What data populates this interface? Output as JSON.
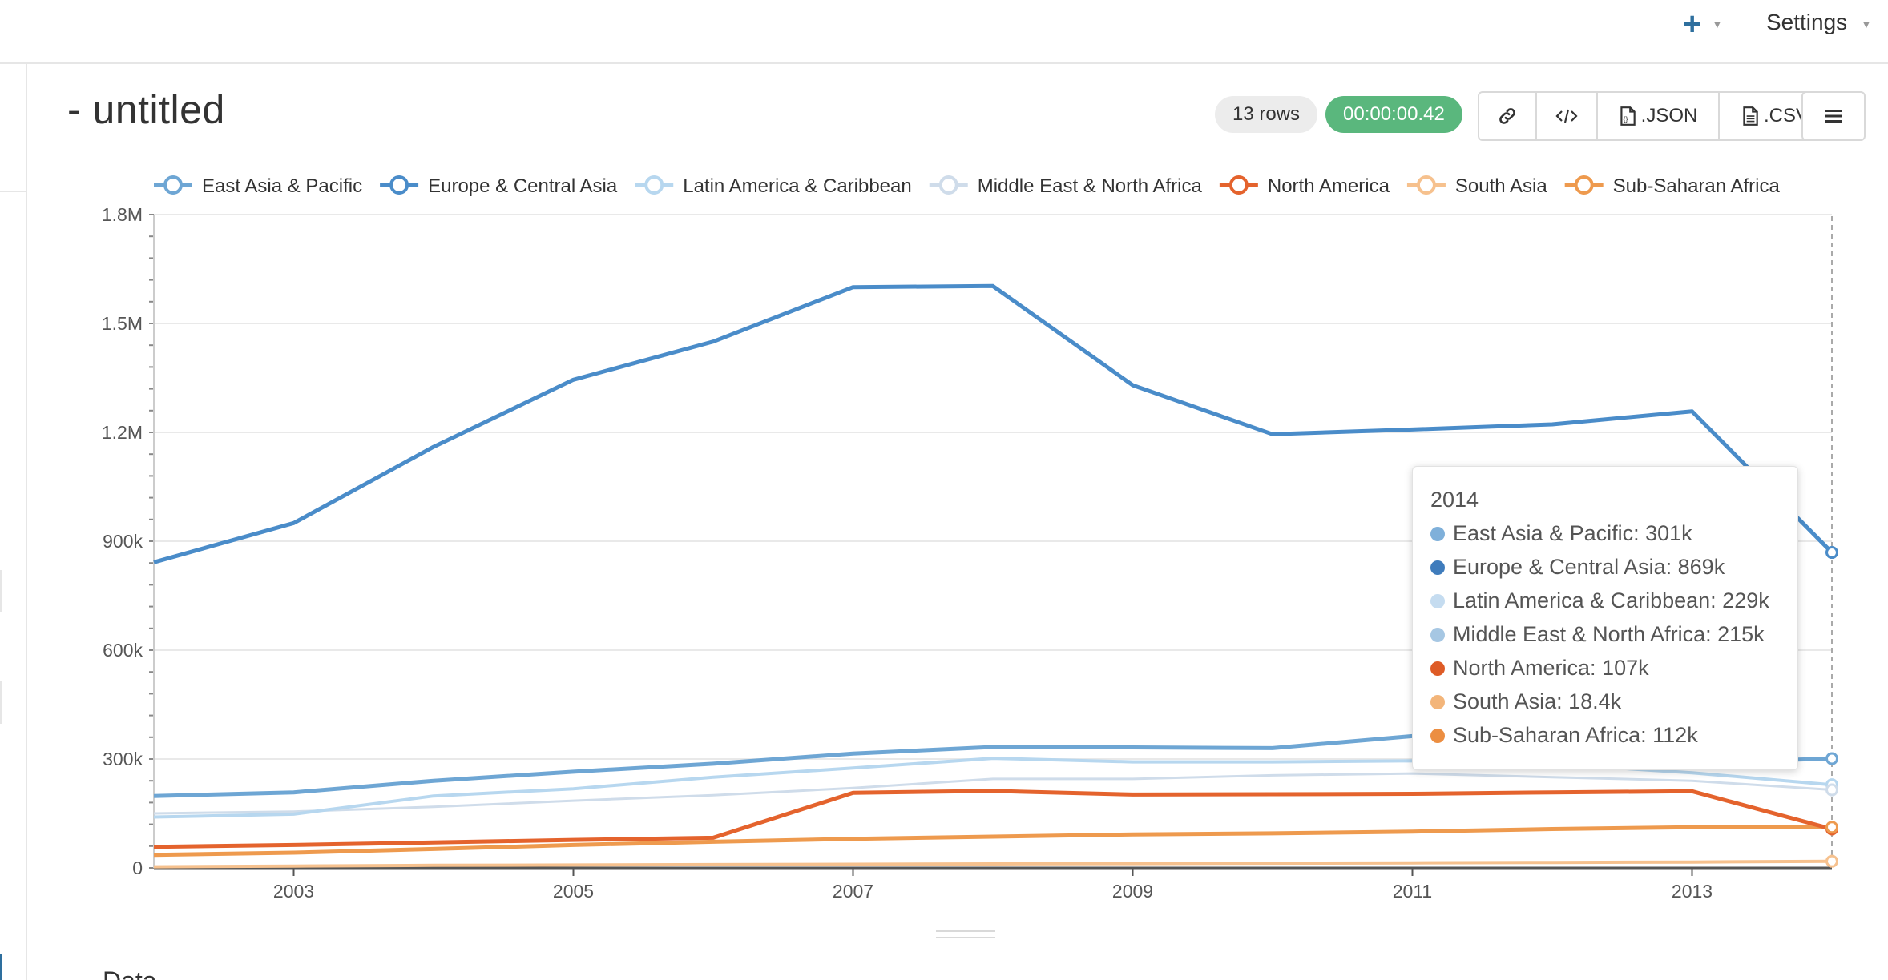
{
  "header": {
    "settings_label": "Settings",
    "add_icon": "plus-icon"
  },
  "query": {
    "title": "- untitled",
    "rows_badge": "13 rows",
    "timer_badge": "00:00:00.42",
    "toolbar": {
      "link_icon": "link-icon",
      "embed_icon": "code-icon",
      "json_label": ".JSON",
      "csv_label": ".CSV",
      "menu_icon": "hamburger-icon"
    }
  },
  "section_tab": "Data",
  "chart_data": {
    "type": "line",
    "x": [
      2002,
      2003,
      2004,
      2005,
      2006,
      2007,
      2008,
      2009,
      2010,
      2011,
      2012,
      2013,
      2014
    ],
    "xticks": [
      "2003",
      "2005",
      "2007",
      "2009",
      "2011",
      "2013"
    ],
    "yticks": [
      "0",
      "300k",
      "600k",
      "900k",
      "1.2M",
      "1.5M",
      "1.8M"
    ],
    "ylim": [
      0,
      1800000
    ],
    "grid": true,
    "legend": "top",
    "series": [
      {
        "name": "East Asia & Pacific",
        "color": "#6ea6d4",
        "stroke": 5,
        "values": [
          198000,
          208000,
          240000,
          265000,
          287000,
          315000,
          333000,
          332000,
          330000,
          363000,
          380000,
          290000,
          301000
        ]
      },
      {
        "name": "Europe & Central Asia",
        "color": "#4a8cc9",
        "stroke": 5,
        "values": [
          842000,
          950000,
          1160000,
          1345000,
          1450000,
          1600000,
          1603000,
          1330000,
          1195000,
          1208000,
          1222000,
          1258000,
          869000
        ]
      },
      {
        "name": "Latin America & Caribbean",
        "color": "#b7d7ef",
        "stroke": 4,
        "values": [
          140000,
          148000,
          198000,
          218000,
          250000,
          275000,
          302000,
          292000,
          292000,
          295000,
          286000,
          262000,
          229000
        ]
      },
      {
        "name": "Middle East & North Africa",
        "color": "#cfdcea",
        "stroke": 3,
        "values": [
          150000,
          155000,
          168000,
          185000,
          200000,
          220000,
          245000,
          245000,
          255000,
          260000,
          250000,
          240000,
          215000
        ]
      },
      {
        "name": "North America",
        "color": "#e4632d",
        "stroke": 5,
        "values": [
          58000,
          63000,
          70000,
          77000,
          83000,
          207000,
          212000,
          202000,
          203000,
          204000,
          208000,
          211000,
          107000
        ]
      },
      {
        "name": "South Asia",
        "color": "#f6c18e",
        "stroke": 4,
        "values": [
          3000,
          5000,
          7000,
          8000,
          9000,
          10000,
          11000,
          12000,
          13000,
          14000,
          15000,
          16000,
          18400
        ]
      },
      {
        "name": "Sub-Saharan Africa",
        "color": "#ee9a4e",
        "stroke": 5,
        "values": [
          36000,
          42000,
          52000,
          63000,
          72000,
          80000,
          86000,
          92000,
          95000,
          100000,
          107000,
          112000,
          112000
        ]
      }
    ],
    "tooltip": {
      "year": "2014",
      "entries": [
        {
          "text": "East Asia & Pacific: 301k",
          "color": "#7fb0da"
        },
        {
          "text": "Europe & Central Asia: 869k",
          "color": "#3f7cbc"
        },
        {
          "text": "Latin America & Caribbean: 229k",
          "color": "#c5dcf0"
        },
        {
          "text": "Middle East & North Africa: 215k",
          "color": "#a6c7e3"
        },
        {
          "text": "North America: 107k",
          "color": "#de5b26"
        },
        {
          "text": "South Asia: 18.4k",
          "color": "#f3b57a"
        },
        {
          "text": "Sub-Saharan Africa: 112k",
          "color": "#ec8e41"
        }
      ]
    }
  }
}
